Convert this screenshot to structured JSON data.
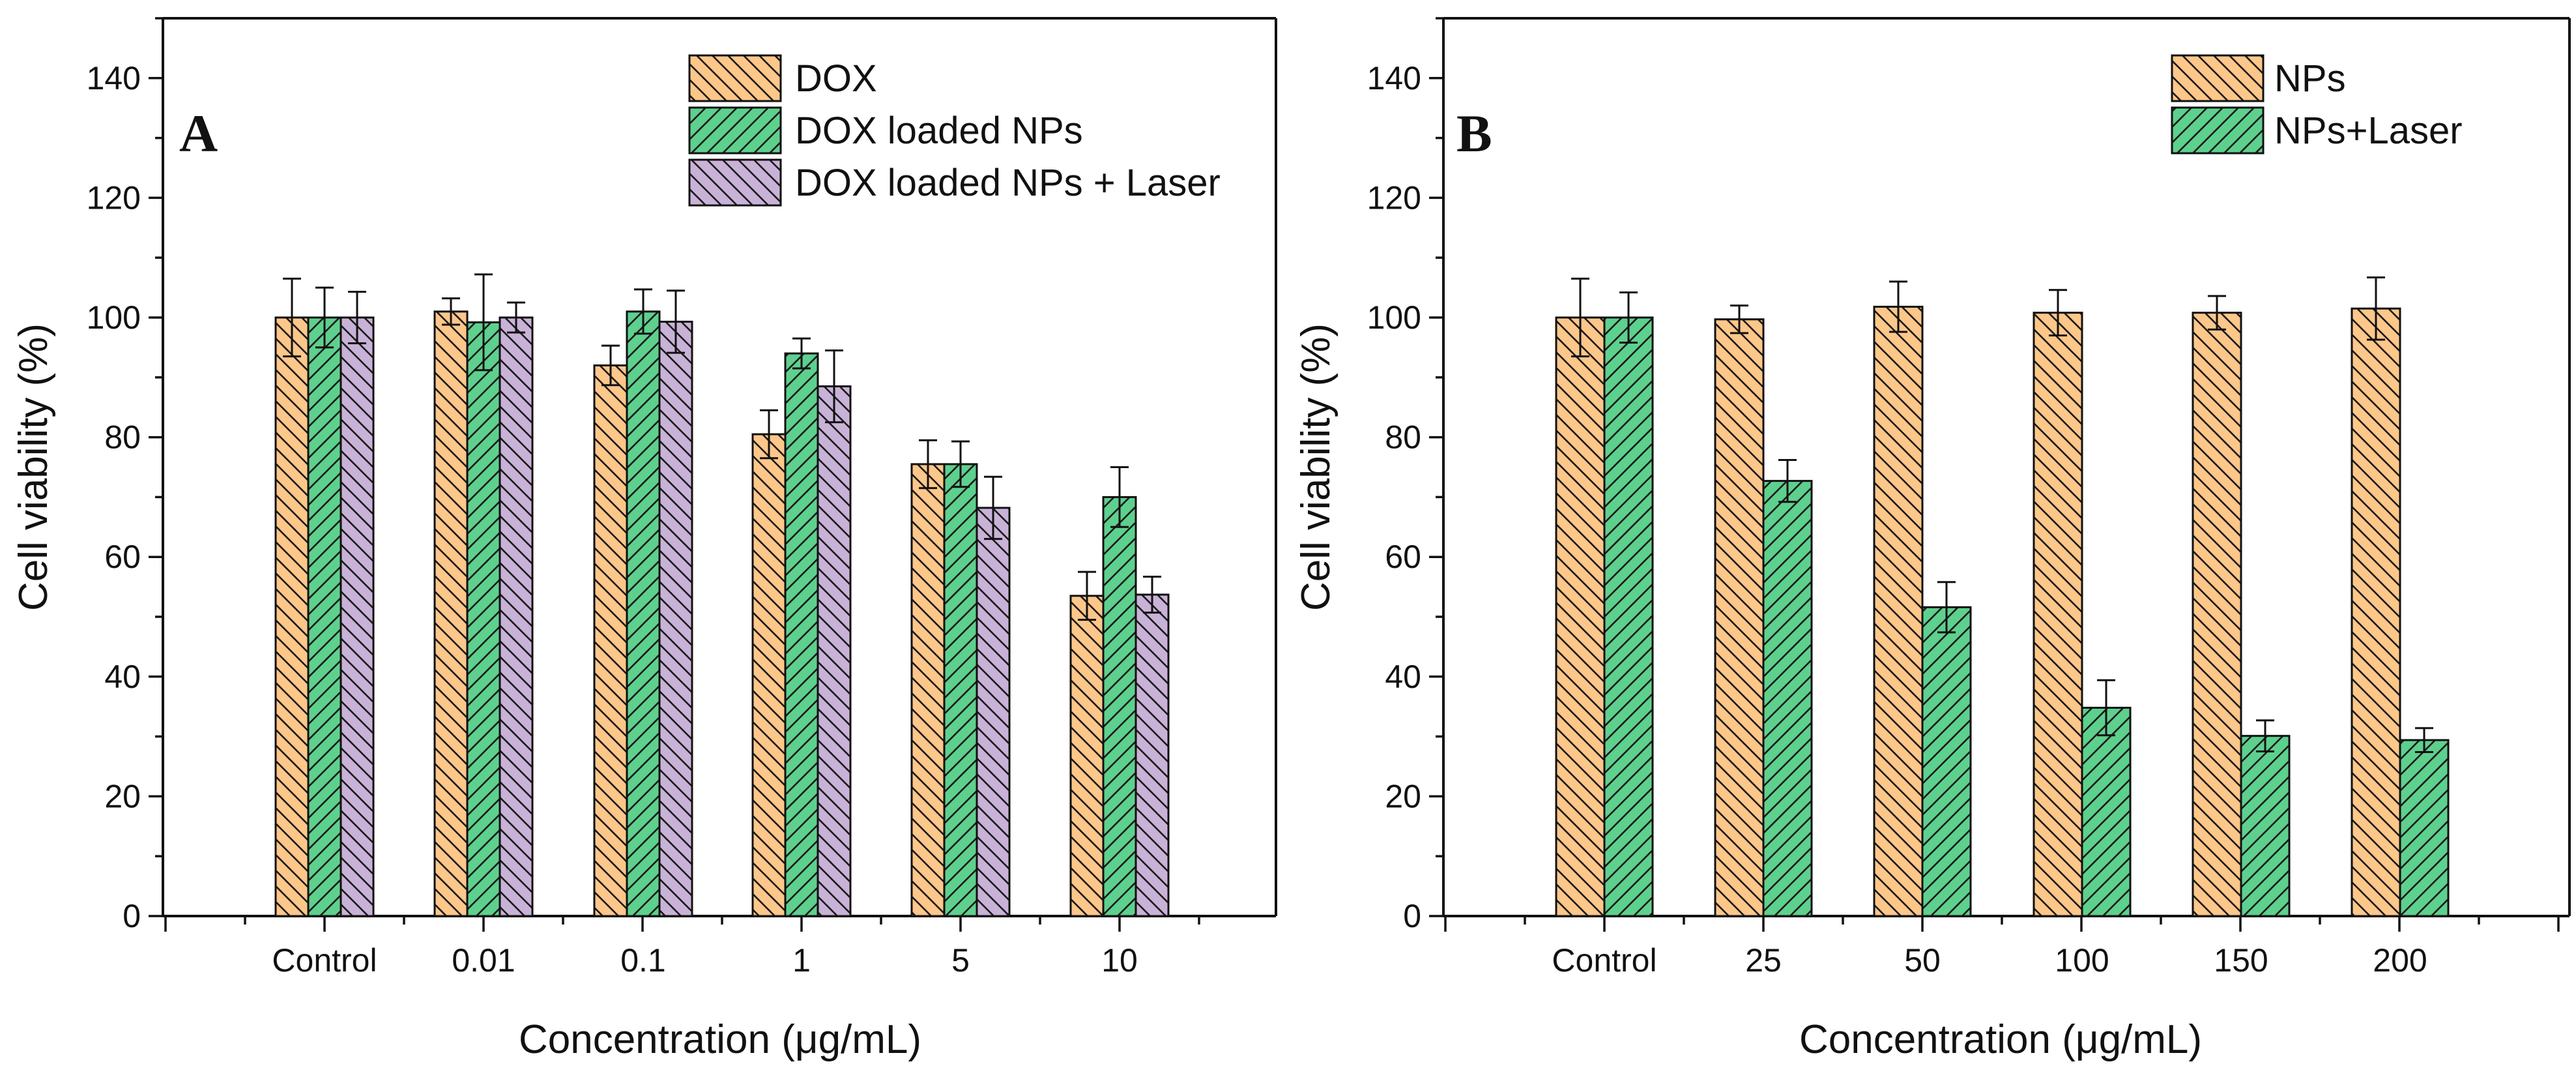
{
  "colors": {
    "orange": "#FDC78A",
    "green": "#5ED08E",
    "purple": "#C9B2D7",
    "axis": "#111111",
    "hatch": "#1a1a1a"
  },
  "chart_data": [
    {
      "type": "bar",
      "panel_label": "A",
      "xlabel": "Concentration (μg/mL)",
      "ylabel": "Cell viability (%)",
      "ylim": [
        0,
        150
      ],
      "yticks": [
        0,
        20,
        40,
        60,
        80,
        100,
        120,
        140
      ],
      "categories": [
        "Control",
        "0.01",
        "0.1",
        "1",
        "5",
        "10"
      ],
      "legend_position": "top-right",
      "series": [
        {
          "name": "DOX",
          "color": "#FDC78A",
          "hatch": "backslash",
          "values": [
            100,
            101,
            92,
            80.5,
            75.5,
            53.5
          ],
          "errors": [
            6.5,
            2.2,
            3.3,
            4,
            4,
            4
          ]
        },
        {
          "name": "DOX loaded NPs",
          "color": "#5ED08E",
          "hatch": "slash",
          "values": [
            100,
            99.2,
            101,
            94,
            75.5,
            70
          ],
          "errors": [
            5,
            8,
            3.7,
            2.5,
            3.8,
            5
          ]
        },
        {
          "name": "DOX loaded NPs + Laser",
          "color": "#C9B2D7",
          "hatch": "backslash",
          "values": [
            100,
            100,
            99.3,
            88.5,
            68.2,
            53.7
          ],
          "errors": [
            4.3,
            2.5,
            5.2,
            6,
            5.2,
            3
          ]
        }
      ]
    },
    {
      "type": "bar",
      "panel_label": "B",
      "xlabel": "Concentration (μg/mL)",
      "ylabel": "Cell viability (%)",
      "ylim": [
        0,
        150
      ],
      "yticks": [
        0,
        20,
        40,
        60,
        80,
        100,
        120,
        140
      ],
      "categories": [
        "Control",
        "25",
        "50",
        "100",
        "150",
        "200"
      ],
      "legend_position": "top-right",
      "series": [
        {
          "name": "NPs",
          "color": "#FDC78A",
          "hatch": "backslash",
          "values": [
            100,
            99.7,
            101.8,
            100.8,
            100.8,
            101.5
          ],
          "errors": [
            6.5,
            2.3,
            4.2,
            3.8,
            2.8,
            5.2
          ]
        },
        {
          "name": "NPs+Laser",
          "color": "#5ED08E",
          "hatch": "slash",
          "values": [
            100,
            72.7,
            51.6,
            34.8,
            30.1,
            29.4
          ],
          "errors": [
            4.2,
            3.5,
            4.2,
            4.6,
            2.6,
            2
          ]
        }
      ]
    }
  ]
}
